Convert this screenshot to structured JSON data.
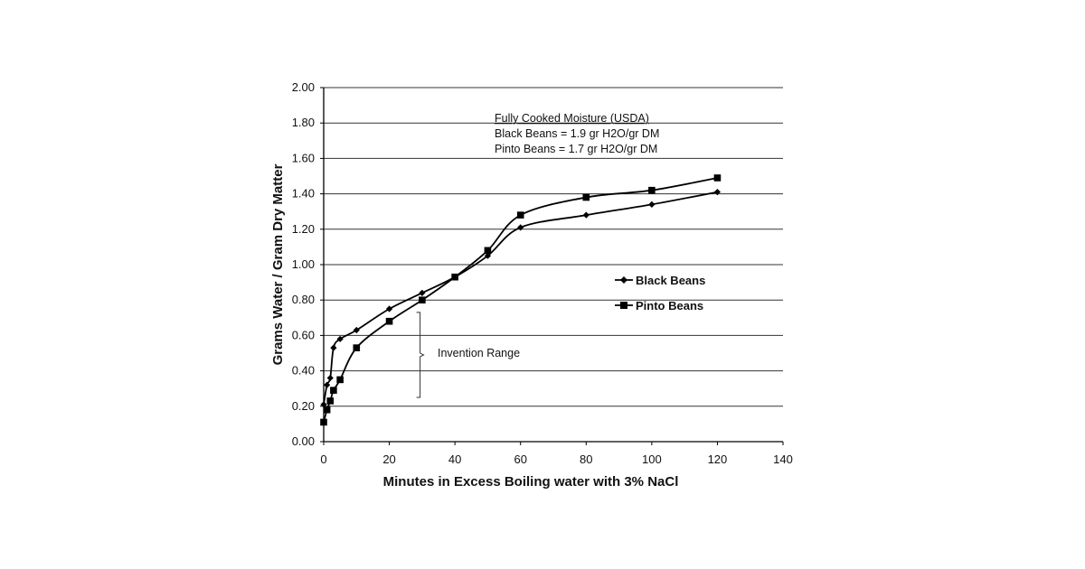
{
  "chart_data": {
    "type": "line",
    "xlabel": "Minutes in Excess Boiling water with 3% NaCl",
    "ylabel": "Grams Water / Gram Dry Matter",
    "xlim": [
      0,
      140
    ],
    "ylim": [
      0,
      2.0
    ],
    "x_ticks": [
      "0",
      "20",
      "40",
      "60",
      "80",
      "100",
      "120",
      "140"
    ],
    "y_ticks": [
      "0.00",
      "0.20",
      "0.40",
      "0.60",
      "0.80",
      "1.00",
      "1.20",
      "1.40",
      "1.60",
      "1.80",
      "2.00"
    ],
    "grid": "horizontal",
    "legend_position": "right",
    "series": [
      {
        "name": "Black Beans",
        "marker": "diamond",
        "color": "#000000",
        "x": [
          0,
          1,
          2,
          3,
          5,
          10,
          20,
          30,
          40,
          50,
          60,
          80,
          100,
          120
        ],
        "y": [
          0.21,
          0.32,
          0.36,
          0.53,
          0.58,
          0.63,
          0.75,
          0.84,
          0.93,
          1.05,
          1.21,
          1.28,
          1.34,
          1.41
        ]
      },
      {
        "name": "Pinto Beans",
        "marker": "square",
        "color": "#000000",
        "x": [
          0,
          1,
          2,
          3,
          5,
          10,
          20,
          30,
          40,
          50,
          60,
          80,
          100,
          120
        ],
        "y": [
          0.11,
          0.18,
          0.23,
          0.29,
          0.35,
          0.53,
          0.68,
          0.8,
          0.93,
          1.08,
          1.28,
          1.38,
          1.42,
          1.49
        ]
      }
    ],
    "annotations": {
      "title": "Fully Cooked Moisture (USDA)",
      "line1": "Black Beans = 1.9 gr H2O/gr DM",
      "line2": "Pinto Beans = 1.7 gr H2O/gr DM",
      "range_label": "Invention Range",
      "range_bracket": {
        "x": 28,
        "y_from": 0.25,
        "y_to": 0.73
      }
    }
  }
}
